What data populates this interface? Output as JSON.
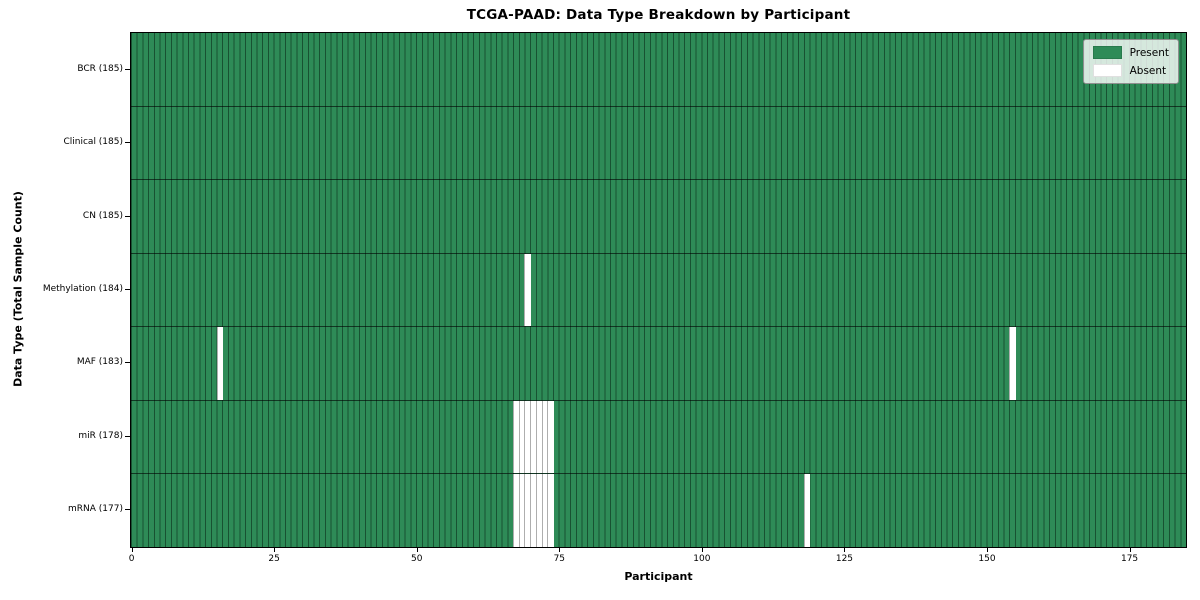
{
  "figure": {
    "title": "TCGA-PAAD: Data Type Breakdown by Participant",
    "xlabel": "Participant",
    "ylabel": "Data Type (Total Sample Count)"
  },
  "legend": {
    "position": "upper right",
    "items": [
      {
        "name": "present",
        "label": "Present",
        "color": "#2e8b57"
      },
      {
        "name": "absent",
        "label": "Absent",
        "color": "#ffffff"
      }
    ]
  },
  "chart_data": {
    "type": "heatmap",
    "title": "TCGA-PAAD: Data Type Breakdown by Participant",
    "xlabel": "Participant",
    "ylabel": "Data Type (Total Sample Count)",
    "xlim": [
      0,
      185
    ],
    "n_participants": 185,
    "x_ticks": [
      0,
      25,
      50,
      75,
      100,
      125,
      150,
      175
    ],
    "present_color": "#2e8b57",
    "absent_color": "#ffffff",
    "grid": "cell-borders",
    "legend_position": "upper right",
    "rows": [
      {
        "data_type": "BCR",
        "label": "BCR (185)",
        "total_samples": 185,
        "absent_participants": []
      },
      {
        "data_type": "Clinical",
        "label": "Clinical (185)",
        "total_samples": 185,
        "absent_participants": []
      },
      {
        "data_type": "CN",
        "label": "CN (185)",
        "total_samples": 185,
        "absent_participants": []
      },
      {
        "data_type": "Methylation",
        "label": "Methylation (184)",
        "total_samples": 184,
        "absent_participants": [
          69
        ]
      },
      {
        "data_type": "MAF",
        "label": "MAF (183)",
        "total_samples": 183,
        "absent_participants": [
          15,
          154
        ]
      },
      {
        "data_type": "miR",
        "label": "miR (178)",
        "total_samples": 178,
        "absent_participants": [
          67,
          68,
          69,
          70,
          71,
          72,
          73
        ]
      },
      {
        "data_type": "mRNA",
        "label": "mRNA (177)",
        "total_samples": 177,
        "absent_participants": [
          67,
          68,
          69,
          70,
          71,
          72,
          73,
          118
        ]
      }
    ]
  }
}
